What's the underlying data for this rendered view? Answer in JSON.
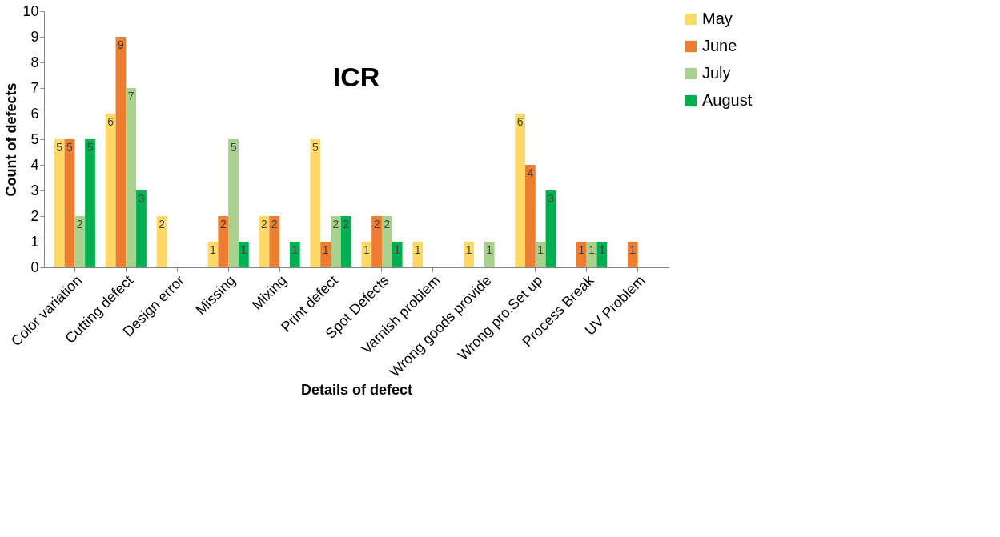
{
  "chart_data": {
    "type": "bar",
    "title": "ICR",
    "xlabel": "Details of defect",
    "ylabel": "Count of defects",
    "categories": [
      "Color variation",
      "Cutting defect",
      "Design error",
      "Missing",
      "Mixing",
      "Print defect",
      "Spot Defects",
      "Varnish problem",
      "Wrong goods provide",
      "Wrong pro.Set up",
      "Process Break",
      "UV Problem"
    ],
    "series": [
      {
        "name": "May",
        "color": "#ffd966",
        "values": [
          5,
          6,
          2,
          1,
          2,
          5,
          1,
          1,
          1,
          6,
          null,
          null
        ]
      },
      {
        "name": "June",
        "color": "#ed7d31",
        "values": [
          5,
          9,
          null,
          2,
          2,
          1,
          2,
          null,
          null,
          4,
          1,
          1
        ]
      },
      {
        "name": "July",
        "color": "#a9d18e",
        "values": [
          2,
          7,
          null,
          5,
          null,
          2,
          2,
          null,
          1,
          1,
          1,
          null
        ]
      },
      {
        "name": "August",
        "color": "#00b050",
        "values": [
          5,
          3,
          null,
          1,
          1,
          2,
          1,
          null,
          null,
          3,
          1,
          null
        ]
      }
    ],
    "ylim": [
      0,
      10
    ],
    "yticks": [
      0,
      1,
      2,
      3,
      4,
      5,
      6,
      7,
      8,
      9,
      10
    ],
    "grid": false,
    "legend": "right",
    "data_labels": true
  }
}
